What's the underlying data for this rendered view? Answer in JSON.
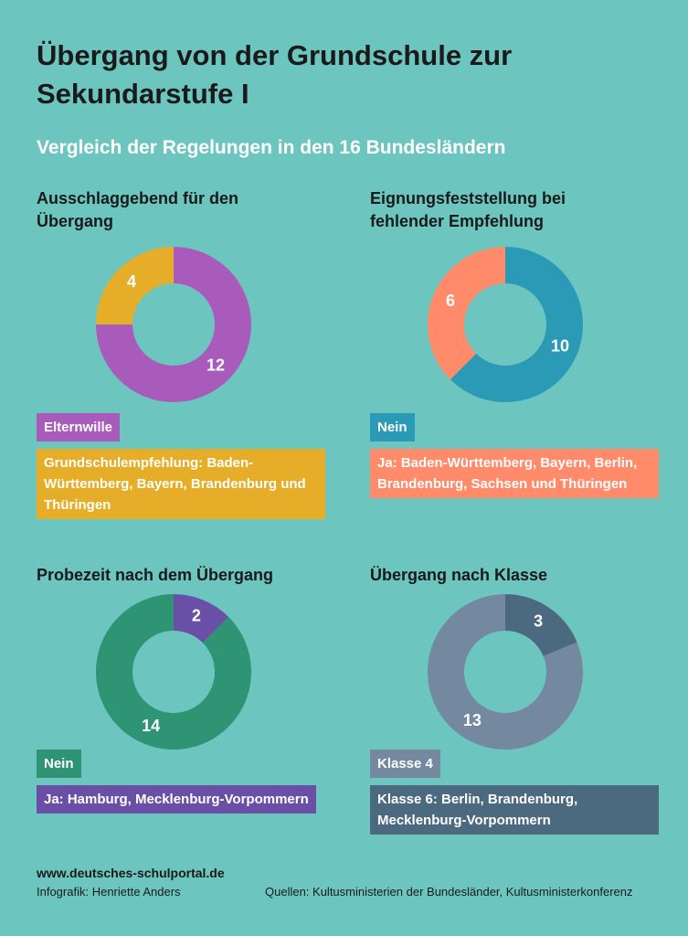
{
  "header": {
    "title": "Übergang von der Grundschule zur Sekundarstufe I",
    "subtitle": "Vergleich der Regelungen in den 16 Bundesländern"
  },
  "chart_data": [
    {
      "type": "donut",
      "title": "Ausschlaggebend für den Übergang",
      "direction": "clockwise",
      "categories": [
        "Elternwille",
        "Grundschulempfehlung: Baden-Württemberg, Bayern, Brandenburg und Thüringen"
      ],
      "values": [
        12,
        4
      ],
      "colors": [
        "#a95bbb",
        "#e6ae28"
      ]
    },
    {
      "type": "donut",
      "title": "Eignungsfeststellung bei fehlender Empfehlung",
      "direction": "clockwise",
      "categories": [
        "Nein",
        "Ja: Baden-Württemberg, Bayern, Berlin, Brandenburg, Sachsen und Thüringen"
      ],
      "values": [
        10,
        6
      ],
      "colors": [
        "#2b9ab7",
        "#ff8b6b"
      ]
    },
    {
      "type": "donut",
      "title": "Probezeit nach dem Übergang",
      "direction": "counterclockwise",
      "categories": [
        "Nein",
        "Ja: Hamburg, Mecklenburg-Vorpommern"
      ],
      "values": [
        14,
        2
      ],
      "colors": [
        "#2e9474",
        "#6a4fa6"
      ]
    },
    {
      "type": "donut",
      "title": "Übergang nach Klasse",
      "direction": "counterclockwise",
      "categories": [
        "Klasse 4",
        "Klasse 6: Berlin, Brandenburg, Mecklenburg-Vorpommern"
      ],
      "values": [
        13,
        3
      ],
      "colors": [
        "#7489a0",
        "#4b6a80"
      ]
    }
  ],
  "footer": {
    "url": "www.deutsches-schulportal.de",
    "credit": "Infografik: Henriette Anders",
    "sources": "Quellen: Kultusministerien der Bundesländer, Kultusministerkonferenz"
  }
}
